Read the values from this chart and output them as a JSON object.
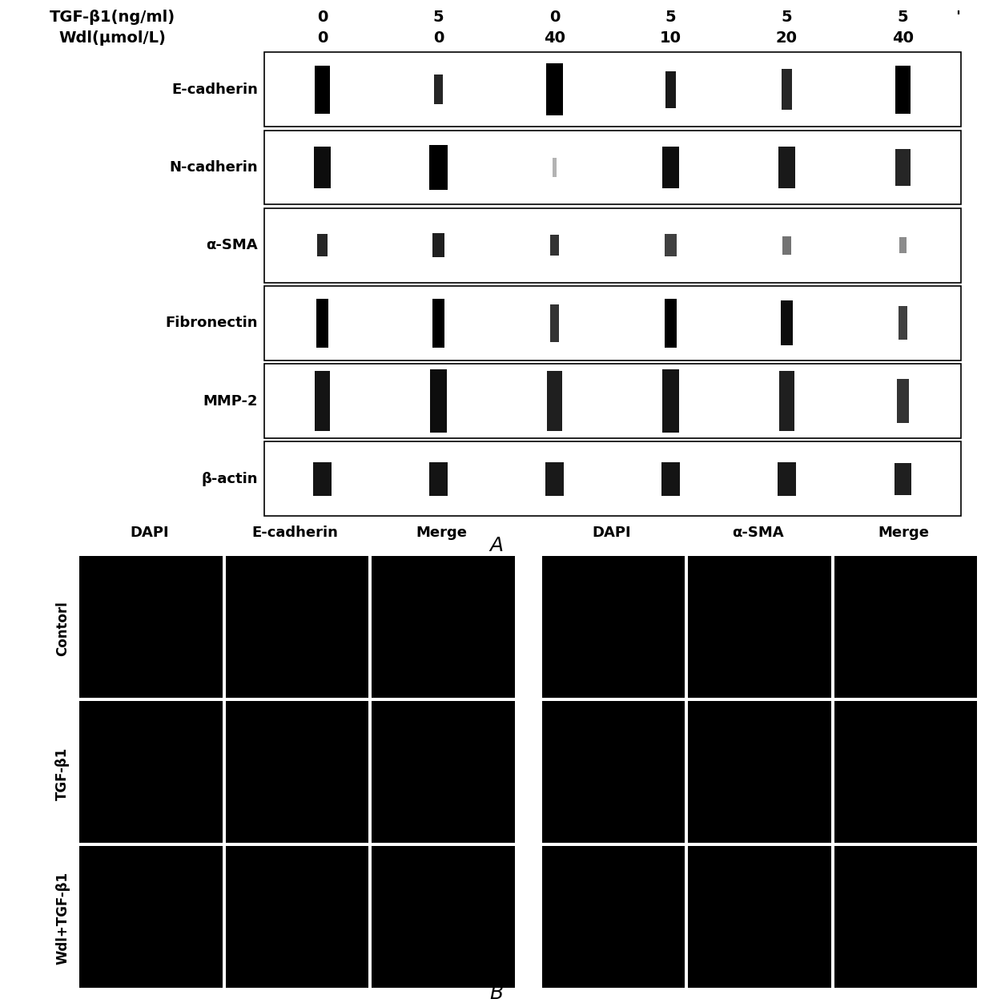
{
  "background_color": "#ffffff",
  "panel_A": {
    "title_row1": "TGF-β1(ng/ml)",
    "title_row2": "Wdl(μmol/L)",
    "col_values_row1": [
      "0",
      "5",
      "0",
      "5",
      "5",
      "5"
    ],
    "col_values_row2": [
      "0",
      "0",
      "40",
      "10",
      "20",
      "40"
    ],
    "row_labels": [
      "E-cadherin",
      "N-cadherin",
      "α-SMA",
      "Fibronectin",
      "MMP-2",
      "β-actin"
    ],
    "label_A": "A",
    "blot_bg": "#f0f0f0",
    "band_color": "#000000"
  },
  "panel_B": {
    "col_headers_left": [
      "DAPI",
      "E-cadherin",
      "Merge"
    ],
    "col_headers_right": [
      "DAPI",
      "α-SMA",
      "Merge"
    ],
    "row_labels": [
      "Contorl",
      "TGF-β1",
      "Wdl+TGF-β1"
    ],
    "label_B": "B",
    "cell_color": "#000000",
    "border_color": "#ffffff"
  }
}
